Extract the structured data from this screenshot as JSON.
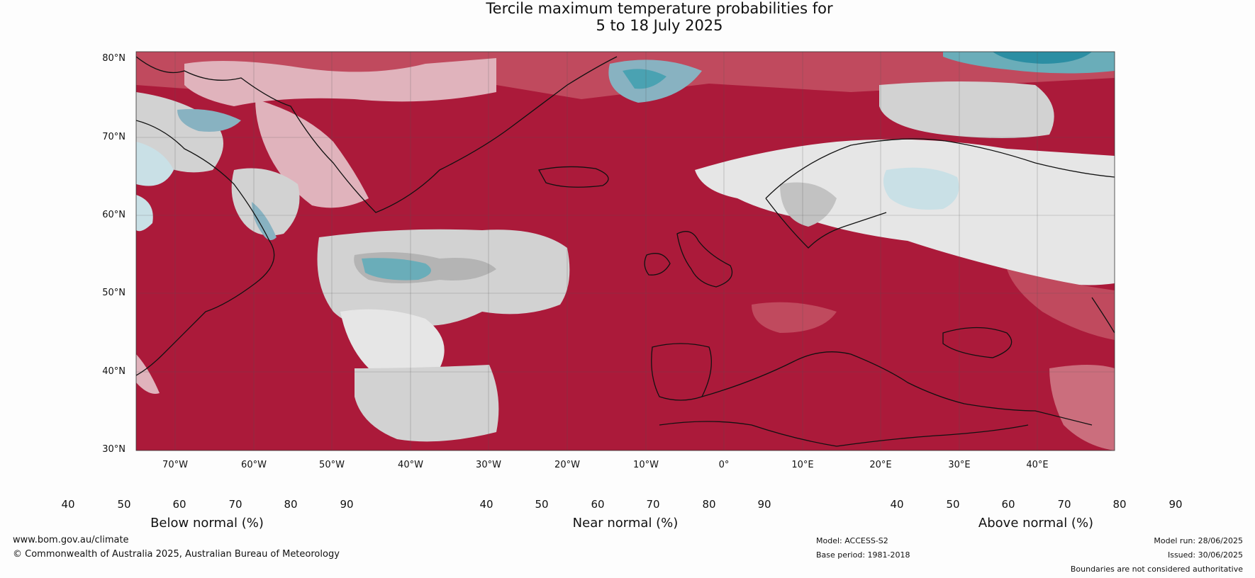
{
  "title": {
    "line1": "Tercile maximum temperature probabilities for",
    "line2": "5 to 18 July 2025"
  },
  "map": {
    "lat_labels": [
      "80°N",
      "70°N",
      "60°N",
      "50°N",
      "40°N",
      "30°N"
    ],
    "lon_labels": [
      "70°W",
      "60°W",
      "50°W",
      "40°W",
      "30°W",
      "20°W",
      "10°W",
      "0°",
      "10°E",
      "20°E",
      "30°E",
      "40°E"
    ]
  },
  "colorbars": [
    {
      "label": "Below normal (%)",
      "ticks": [
        "40",
        "50",
        "60",
        "70",
        "80",
        "90"
      ],
      "colors": [
        "#ffffff",
        "#c9e0e6",
        "#a6c6cd",
        "#88b2c1",
        "#6aadb9",
        "#4aa2b2",
        "#2b8ea3"
      ]
    },
    {
      "label": "Near normal (%)",
      "ticks": [
        "40",
        "50",
        "60",
        "70",
        "80",
        "90"
      ],
      "colors": [
        "#ffffff",
        "#e6e6e6",
        "#d2d2d2",
        "#c2c2c2",
        "#b4b4b4",
        "#a2a2a2",
        "#8a8a8a"
      ]
    },
    {
      "label": "Above normal (%)",
      "ticks": [
        "40",
        "50",
        "60",
        "70",
        "80",
        "90"
      ],
      "colors": [
        "#ffffff",
        "#e0b3bc",
        "#d68b98",
        "#cb6e7d",
        "#c04a5e",
        "#b7354c",
        "#ab1a3a"
      ]
    }
  ],
  "footer": {
    "website": "www.bom.gov.au/climate",
    "copyright": "© Commonwealth of Australia 2025, Australian Bureau of Meteorology",
    "model": "Model: ACCESS-S2",
    "base_period": "Base period: 1981-2018",
    "model_run": "Model run: 28/06/2025",
    "issued": "Issued: 30/06/2025",
    "disclaimer": "Boundaries are not considered authoritative"
  }
}
